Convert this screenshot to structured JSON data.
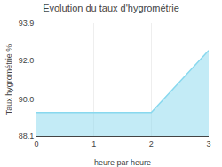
{
  "chart_data": {
    "type": "area",
    "title": "Evolution du taux d'hygrométrie",
    "xlabel": "heure par heure",
    "ylabel": "Taux hygrométrie %",
    "x": [
      0,
      1,
      2,
      3
    ],
    "values": [
      89.3,
      89.3,
      89.3,
      92.5
    ],
    "color": "#88d8ee",
    "xlim": [
      0,
      3
    ],
    "xticks": [
      0,
      1,
      2,
      3
    ],
    "ylim": [
      88.1,
      93.9
    ],
    "yticks": [
      88.1,
      {
        "value": 90.0,
        "label": "90.0"
      },
      {
        "value": 92.0,
        "label": "92.0"
      },
      93.9
    ],
    "grid": true
  }
}
